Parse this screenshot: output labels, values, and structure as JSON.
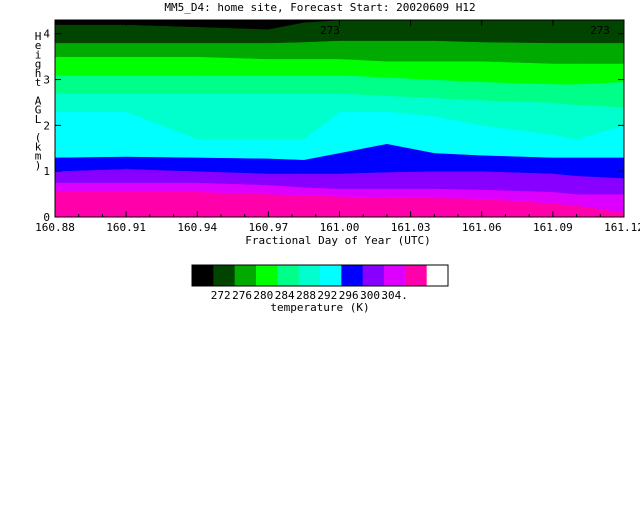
{
  "chart_data": {
    "type": "contour",
    "title": "MM5_D4: home site,  Forecast Start: 20020609 H12",
    "xlabel": "Fractional Day of Year (UTC)",
    "ylabel": "Height AGL (km)",
    "xlim": [
      160.88,
      161.12
    ],
    "ylim": [
      0,
      4.3
    ],
    "x_ticks": [
      "160.88",
      "160.91",
      "160.94",
      "160.97",
      "161.00",
      "161.03",
      "161.06",
      "161.09",
      "161.12"
    ],
    "y_ticks": [
      "0",
      "1",
      "2",
      "3",
      "4"
    ],
    "contour_labels": [
      "273",
      "273"
    ],
    "colorbar": {
      "label": "temperature (K)",
      "tick_labels": [
        "272.",
        "276.",
        "280.",
        "284.",
        "288.",
        "292.",
        "296.",
        "300.",
        "304."
      ],
      "colors": [
        "#000000",
        "#004400",
        "#00aa00",
        "#00ff00",
        "#00ff88",
        "#00ffcc",
        "#00ffff",
        "#0000ff",
        "#8800ff",
        "#dd00ff",
        "#ff00aa",
        "#ffffff"
      ]
    },
    "band_colors": [
      "#ff00aa",
      "#dd00ff",
      "#8800ff",
      "#0000ff",
      "#00ffff",
      "#00ffcc",
      "#00ff88",
      "#00ff00",
      "#00aa00",
      "#004400",
      "#000000"
    ],
    "band_boundaries": {
      "x": [
        160.88,
        160.91,
        160.94,
        160.97,
        160.985,
        161.0,
        161.02,
        161.04,
        161.06,
        161.09,
        161.1,
        161.12
      ],
      "heights_km": [
        [
          0.55,
          0.55,
          0.55,
          0.5,
          0.48,
          0.45,
          0.43,
          0.42,
          0.4,
          0.3,
          0.25,
          0.1
        ],
        [
          0.75,
          0.75,
          0.75,
          0.7,
          0.65,
          0.62,
          0.62,
          0.62,
          0.6,
          0.55,
          0.5,
          0.5
        ],
        [
          1.0,
          1.05,
          1.0,
          0.95,
          0.95,
          0.95,
          0.98,
          1.0,
          1.0,
          0.95,
          0.9,
          0.85
        ],
        [
          1.3,
          1.32,
          1.3,
          1.28,
          1.25,
          1.4,
          1.6,
          1.4,
          1.35,
          1.3,
          1.3,
          1.3
        ],
        [
          2.3,
          2.3,
          1.7,
          1.7,
          1.7,
          2.3,
          2.3,
          2.2,
          2.0,
          1.8,
          1.7,
          2.0
        ],
        [
          2.7,
          2.7,
          2.7,
          2.7,
          2.7,
          2.7,
          2.65,
          2.6,
          2.55,
          2.5,
          2.45,
          2.4
        ],
        [
          3.1,
          3.1,
          3.1,
          3.1,
          3.1,
          3.1,
          3.05,
          3.0,
          2.95,
          2.9,
          2.9,
          2.95
        ],
        [
          3.5,
          3.5,
          3.5,
          3.45,
          3.45,
          3.45,
          3.4,
          3.4,
          3.4,
          3.35,
          3.35,
          3.35
        ],
        [
          3.8,
          3.8,
          3.8,
          3.8,
          3.82,
          3.85,
          3.85,
          3.85,
          3.82,
          3.8,
          3.8,
          3.8
        ],
        [
          4.2,
          4.2,
          4.15,
          4.1,
          4.25,
          4.3,
          4.3,
          4.3,
          4.3,
          4.3,
          4.3,
          4.3
        ]
      ]
    }
  }
}
